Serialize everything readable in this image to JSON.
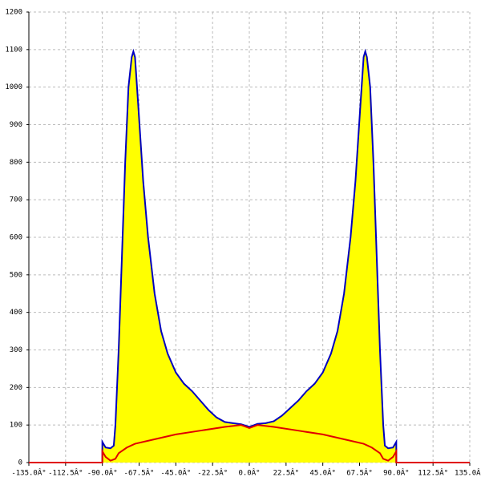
{
  "chart_data": {
    "type": "line",
    "xlim": [
      -135,
      135
    ],
    "xticks": [
      {
        "value": -135,
        "label": "-135.0Â°"
      },
      {
        "value": -112.5,
        "label": "-112.5Â°"
      },
      {
        "value": -90,
        "label": "-90.0Â°"
      },
      {
        "value": -67.5,
        "label": "-67.5Â°"
      },
      {
        "value": -45,
        "label": "-45.0Â°"
      },
      {
        "value": -22.5,
        "label": "-22.5Â°"
      },
      {
        "value": 0,
        "label": "0.0Â°"
      },
      {
        "value": 22.5,
        "label": "22.5Â°"
      },
      {
        "value": 45,
        "label": "45.0Â°"
      },
      {
        "value": 67.5,
        "label": "67.5Â°"
      },
      {
        "value": 90,
        "label": "90.0Â°"
      },
      {
        "value": 112.5,
        "label": "112.5Â°"
      },
      {
        "value": 135,
        "label": "135.0Â°"
      }
    ],
    "ylim": [
      0,
      1200
    ],
    "yticks": [
      0,
      100,
      200,
      300,
      400,
      500,
      600,
      700,
      800,
      900,
      1000,
      1100,
      1200
    ],
    "grid": true,
    "series": [
      {
        "color": "#0000c0",
        "fill_color": "#ffff00",
        "x": [
          -90,
          -90,
          -88,
          -85,
          -83,
          -82,
          -80,
          -78,
          -76,
          -74,
          -72,
          -71,
          -70,
          -68,
          -65,
          -62,
          -58,
          -54,
          -50,
          -45,
          -40,
          -35,
          -30,
          -25,
          -20,
          -15,
          -10,
          -5,
          0,
          5,
          10,
          15,
          20,
          25,
          30,
          35,
          40,
          45,
          50,
          54,
          58,
          62,
          65,
          68,
          70,
          71,
          72,
          74,
          76,
          78,
          80,
          82,
          83,
          85,
          88,
          90,
          90
        ],
        "values": [
          0,
          55,
          40,
          38,
          45,
          100,
          300,
          550,
          800,
          1000,
          1080,
          1095,
          1080,
          950,
          750,
          600,
          450,
          350,
          290,
          240,
          210,
          190,
          165,
          140,
          120,
          108,
          105,
          102,
          95,
          103,
          105,
          110,
          125,
          145,
          165,
          190,
          210,
          240,
          290,
          350,
          450,
          600,
          750,
          950,
          1080,
          1095,
          1080,
          1000,
          800,
          550,
          300,
          100,
          45,
          38,
          40,
          55,
          0
        ]
      },
      {
        "color": "#e00000",
        "x": [
          -135,
          -90,
          -90,
          -88,
          -85,
          -82,
          -80,
          -75,
          -70,
          -60,
          -45,
          -30,
          -15,
          -5,
          0,
          5,
          15,
          30,
          45,
          60,
          70,
          75,
          80,
          82,
          85,
          88,
          90,
          90,
          135
        ],
        "values": [
          0,
          0,
          30,
          15,
          5,
          10,
          25,
          40,
          50,
          60,
          75,
          85,
          95,
          100,
          92,
          100,
          95,
          85,
          75,
          60,
          50,
          40,
          25,
          10,
          5,
          15,
          30,
          0,
          0
        ]
      }
    ]
  }
}
